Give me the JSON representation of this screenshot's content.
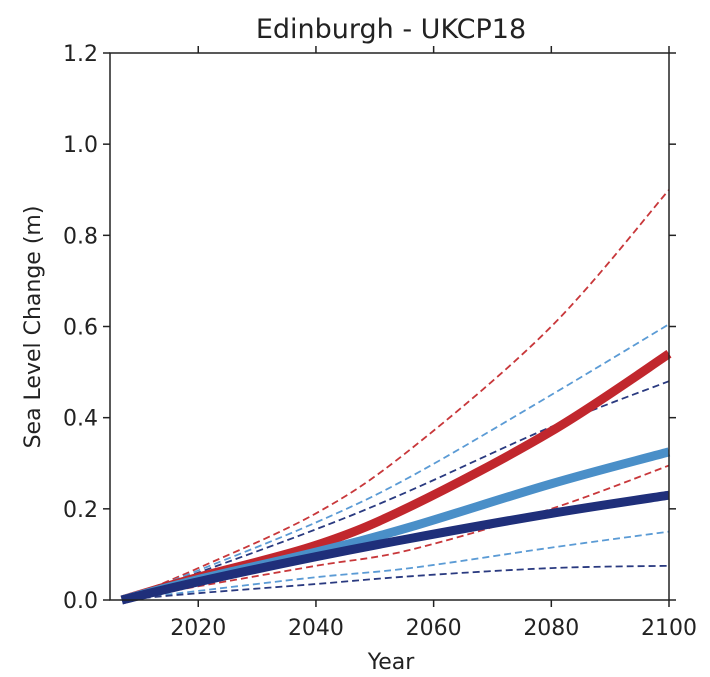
{
  "chart_data": {
    "type": "line",
    "title": "Edinburgh - UKCP18",
    "xlabel": "Year",
    "ylabel": "Sea Level Change (m)",
    "xlim": [
      2005,
      2100
    ],
    "ylim": [
      0.0,
      1.2
    ],
    "x_ticks": [
      2020,
      2040,
      2060,
      2080,
      2100
    ],
    "x_tick_labels": [
      "2020",
      "2040",
      "2060",
      "2080",
      "2100"
    ],
    "y_ticks": [
      0.0,
      0.2,
      0.4,
      0.6,
      0.8,
      1.0,
      1.2
    ],
    "y_tick_labels": [
      "0.0",
      "0.2",
      "0.4",
      "0.6",
      "0.8",
      "1.0",
      "1.2"
    ],
    "grid": false,
    "legend": "none",
    "x": [
      2007,
      2020,
      2040,
      2056,
      2080,
      2100
    ],
    "series": [
      {
        "style": "solid",
        "color": "#c1272d",
        "values": [
          0.0,
          0.05,
          0.12,
          0.205,
          0.37,
          0.54
        ]
      },
      {
        "style": "solid",
        "color": "#4a8fc8",
        "values": [
          0.0,
          0.045,
          0.105,
          0.16,
          0.255,
          0.325
        ]
      },
      {
        "style": "solid",
        "color": "#1f2f7a",
        "values": [
          0.0,
          0.04,
          0.095,
          0.135,
          0.19,
          0.23
        ]
      },
      {
        "style": "dashed",
        "color": "#c8373a",
        "values": [
          0.0,
          0.07,
          0.19,
          0.33,
          0.6,
          0.9
        ]
      },
      {
        "style": "dashed",
        "color": "#5b9bd5",
        "values": [
          0.0,
          0.065,
          0.17,
          0.27,
          0.45,
          0.605
        ]
      },
      {
        "style": "dashed",
        "color": "#2a3a80",
        "values": [
          0.0,
          0.06,
          0.155,
          0.24,
          0.38,
          0.48
        ]
      },
      {
        "style": "dashed",
        "color": "#c8373a",
        "values": [
          0.0,
          0.03,
          0.075,
          0.11,
          0.2,
          0.295
        ]
      },
      {
        "style": "dashed",
        "color": "#5b9bd5",
        "values": [
          0.0,
          0.02,
          0.05,
          0.07,
          0.115,
          0.15
        ]
      },
      {
        "style": "dashed",
        "color": "#2a3a80",
        "values": [
          0.0,
          0.015,
          0.035,
          0.052,
          0.07,
          0.075
        ]
      }
    ]
  }
}
